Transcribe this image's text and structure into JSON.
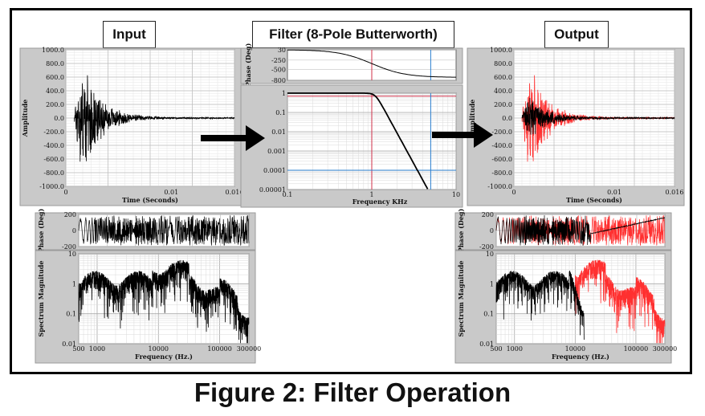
{
  "titles": {
    "input": "Input",
    "filter": "Filter (8-Pole Butterworth)",
    "output": "Output"
  },
  "caption": "Figure 2: Filter Operation",
  "colors": {
    "raw_signal": "#000000",
    "filtered_signal": "#ff3030",
    "cutoff_marker": "#d0304a",
    "stopband_marker": "#2a7fd0"
  },
  "chart_data": [
    {
      "id": "input_time",
      "type": "line",
      "xlabel": "Time (Seconds)",
      "ylabel": "Amplitude",
      "x_ticks": [
        "0",
        "0.01",
        "0.016"
      ],
      "y_ticks": [
        "1000.0",
        "800.0",
        "600.0",
        "400.0",
        "200.0",
        "0.0",
        "-200.0",
        "-400.0",
        "-600.0",
        "-800.0",
        "-1000.0"
      ],
      "xlim": [
        0,
        0.016
      ],
      "ylim": [
        -1000,
        1000
      ],
      "series": [
        {
          "color": "#000000",
          "envelope_peak": 850,
          "peak_time": 0.0015
        }
      ]
    },
    {
      "id": "filter_phase",
      "type": "line",
      "ylabel": "Phase (Deg)",
      "y_ticks": [
        "30",
        "-250",
        "-500",
        "-800"
      ],
      "ylim": [
        -800,
        30
      ],
      "series": [
        {
          "color": "#000000",
          "x": [
            0.1,
            0.5,
            1,
            1.5,
            2,
            3,
            5,
            10
          ],
          "y": [
            5,
            -40,
            -180,
            -350,
            -500,
            -620,
            -690,
            -720
          ]
        }
      ]
    },
    {
      "id": "filter_magnitude",
      "type": "line",
      "xlabel": "Frequency KHz",
      "x_ticks": [
        "0.1",
        "1",
        "10"
      ],
      "y_ticks": [
        "1",
        "0.1",
        "0.01",
        "0.001",
        "0.0001",
        "0.00001"
      ],
      "xlim": [
        0.1,
        10
      ],
      "ylim": [
        1e-05,
        1
      ],
      "scale": "log-log",
      "cutoff_khz": 1,
      "marker_khz": 5,
      "series": [
        {
          "color": "#000000",
          "x": [
            0.1,
            0.5,
            1,
            1.2,
            1.5,
            2,
            3,
            5,
            10
          ],
          "y": [
            1,
            1,
            0.9,
            0.55,
            0.2,
            0.03,
            0.0015,
            2e-05,
            1e-05
          ]
        }
      ]
    },
    {
      "id": "output_time",
      "type": "line",
      "xlabel": "Time (Seconds)",
      "ylabel": "Amplitude",
      "x_ticks": [
        "0",
        "0.01",
        "0.016"
      ],
      "y_ticks": [
        "1000.0",
        "800.0",
        "600.0",
        "400.0",
        "200.0",
        "0.0",
        "-200.0",
        "-400.0",
        "-600.0",
        "-800.0",
        "-1000.0"
      ],
      "xlim": [
        0,
        0.016
      ],
      "ylim": [
        -1000,
        1000
      ],
      "series": [
        {
          "color": "#ff3030",
          "envelope_peak": 850,
          "peak_time": 0.0015
        },
        {
          "color": "#000000",
          "envelope_peak": 350,
          "peak_time": 0.0015
        }
      ]
    },
    {
      "id": "input_phase",
      "type": "line",
      "ylabel": "Phase (Deg)",
      "y_ticks": [
        "200",
        "0",
        "-200"
      ],
      "ylim": [
        -200,
        200
      ],
      "series": [
        {
          "color": "#000000"
        }
      ]
    },
    {
      "id": "input_spectrum",
      "type": "line",
      "xlabel": "Frequency (Hz.)",
      "ylabel": "Spectrum Magnitude",
      "x_ticks": [
        "500",
        "1000",
        "10000",
        "100000",
        "300000"
      ],
      "y_ticks": [
        "10",
        "1",
        "0.1",
        "0.01"
      ],
      "xlim": [
        500,
        300000
      ],
      "ylim": [
        0.01,
        10
      ],
      "scale": "log-log",
      "series": [
        {
          "color": "#000000"
        }
      ]
    },
    {
      "id": "output_phase",
      "type": "line",
      "ylabel": "Phase (Deg)",
      "y_ticks": [
        "200",
        "0",
        "-200"
      ],
      "ylim": [
        -200,
        200
      ],
      "series": [
        {
          "color": "#ff3030"
        },
        {
          "color": "#000000"
        }
      ]
    },
    {
      "id": "output_spectrum",
      "type": "line",
      "xlabel": "Frequency (Hz.)",
      "ylabel": "Spectrum Magnitude",
      "x_ticks": [
        "500",
        "1000",
        "10000",
        "100000",
        "300000"
      ],
      "y_ticks": [
        "10",
        "1",
        "0.1",
        "0.01"
      ],
      "xlim": [
        500,
        300000
      ],
      "ylim": [
        0.01,
        10
      ],
      "scale": "log-log",
      "series": [
        {
          "color": "#ff3030"
        },
        {
          "color": "#000000"
        }
      ]
    }
  ]
}
